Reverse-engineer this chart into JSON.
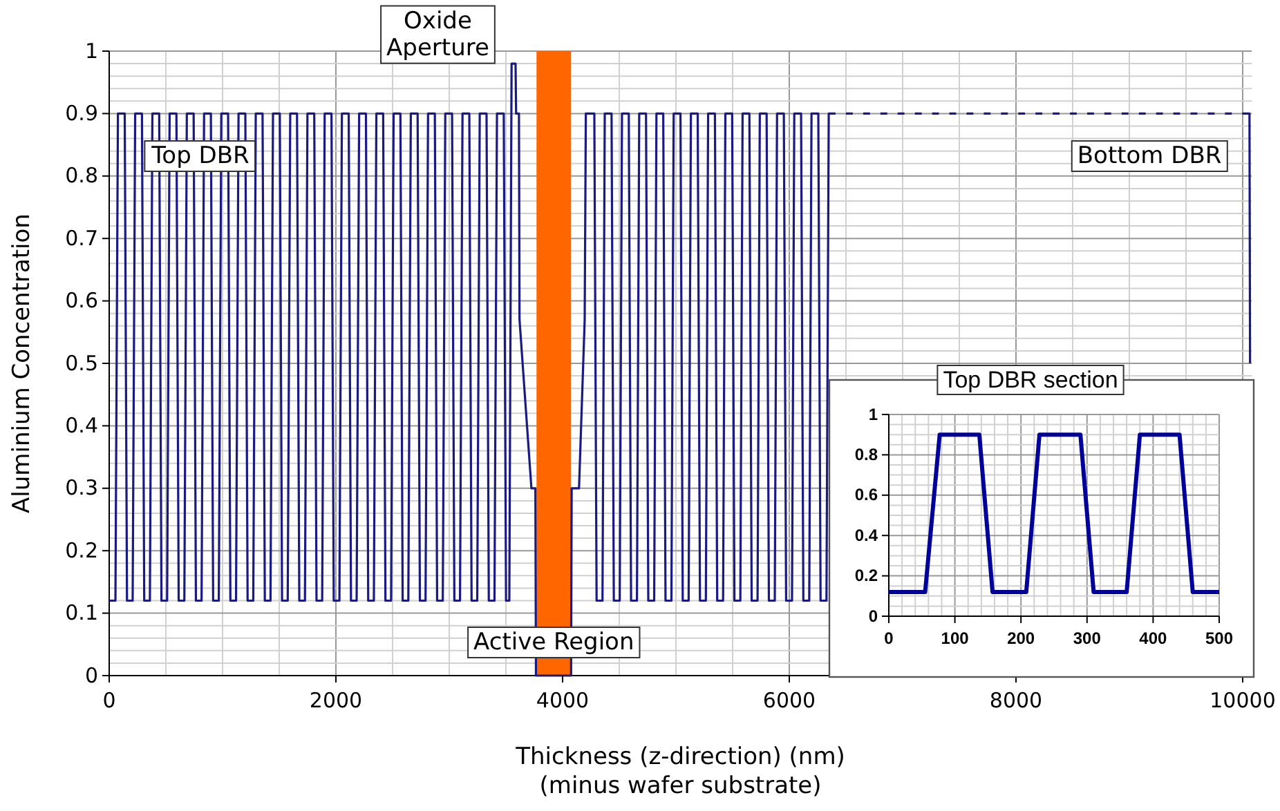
{
  "chart_data": [
    {
      "type": "line",
      "xlabel": "Thickness (z-direction) (nm)\n(minus wafer substrate)",
      "ylabel": "Aluminium Concentration",
      "xlim": [
        0,
        10080
      ],
      "xticks": [
        0,
        2000,
        4000,
        6000,
        8000,
        10000
      ],
      "ylim": [
        0,
        1
      ],
      "yticks": [
        0,
        0.1,
        0.2,
        0.3,
        0.4,
        0.5,
        0.6,
        0.7,
        0.8,
        0.9,
        1
      ],
      "grid": true,
      "marker": "none",
      "line_style": "solid",
      "series": [
        {
          "color": "#1a1a80",
          "x": [
            0,
            55,
            77,
            137,
            157,
            207,
            229,
            289,
            309,
            359,
            381,
            441,
            461,
            511,
            533,
            593,
            613,
            663,
            685,
            745,
            765,
            815,
            837,
            897,
            917,
            967,
            989,
            1049,
            1069,
            1119,
            1141,
            1201,
            1221,
            1271,
            1293,
            1353,
            1373,
            1423,
            1445,
            1505,
            1525,
            1575,
            1597,
            1657,
            1677,
            1727,
            1749,
            1809,
            1829,
            1879,
            1901,
            1961,
            1981,
            2031,
            2053,
            2113,
            2133,
            2183,
            2205,
            2265,
            2285,
            2335,
            2357,
            2417,
            2437,
            2487,
            2509,
            2569,
            2589,
            2639,
            2661,
            2721,
            2741,
            2791,
            2813,
            2873,
            2893,
            2943,
            2965,
            3025,
            3045,
            3095,
            3117,
            3177,
            3197,
            3247,
            3269,
            3329,
            3349,
            3399,
            3421,
            3481,
            3501,
            3530,
            3550,
            3585,
            3590,
            3615,
            3620,
            3725,
            3760,
            3765,
            4075,
            4080,
            4145,
            4195,
            4205,
            4280,
            4300,
            4352,
            4372,
            4432,
            4452,
            4504,
            4524,
            4584,
            4604,
            4656,
            4676,
            4736,
            4756,
            4808,
            4828,
            4888,
            4908,
            4960,
            4980,
            5040,
            5060,
            5112,
            5132,
            5192,
            5212,
            5264,
            5284,
            5344,
            5364,
            5416,
            5436,
            5496,
            5516,
            5568,
            5588,
            5648,
            5668,
            5720,
            5740,
            5800,
            5820,
            5872,
            5892,
            5952,
            5972,
            6024,
            6044,
            6104,
            6124,
            6176,
            6196,
            6256,
            6276,
            6328,
            6348,
            6408,
            6428,
            6480,
            6500,
            6560,
            6580,
            6632,
            6652,
            6712,
            6732,
            6784,
            6804,
            6864,
            6884,
            6936,
            6956,
            7016,
            7036,
            7088,
            7108,
            7168,
            7188,
            7240,
            7260,
            7320,
            7340,
            7392,
            7412,
            7472,
            7492,
            7544,
            7564,
            7624,
            7644,
            7696,
            7716,
            7776,
            7796,
            7848,
            7868,
            7928,
            7948,
            8000,
            8020,
            8080,
            8100,
            8152,
            8172,
            8232,
            8252,
            8304,
            8324,
            8384,
            8404,
            8456,
            8476,
            8536,
            8556,
            8608,
            8628,
            8688,
            8708,
            8760,
            8780,
            8840,
            8860,
            8912,
            8932,
            8992,
            9012,
            9064,
            9084,
            9144,
            9164,
            9216,
            9236,
            9296,
            9316,
            9368,
            9388,
            9448,
            9468,
            9520,
            9540,
            9600,
            9620,
            9672,
            9692,
            9752,
            9772,
            9824,
            9844,
            9904,
            9924,
            9976,
            9996,
            10060,
            10065
          ],
          "values": [
            0.12,
            0.12,
            0.9,
            0.9,
            0.12,
            0.12,
            0.9,
            0.9,
            0.12,
            0.12,
            0.9,
            0.9,
            0.12,
            0.12,
            0.9,
            0.9,
            0.12,
            0.12,
            0.9,
            0.9,
            0.12,
            0.12,
            0.9,
            0.9,
            0.12,
            0.12,
            0.9,
            0.9,
            0.12,
            0.12,
            0.9,
            0.9,
            0.12,
            0.12,
            0.9,
            0.9,
            0.12,
            0.12,
            0.9,
            0.9,
            0.12,
            0.12,
            0.9,
            0.9,
            0.12,
            0.12,
            0.9,
            0.9,
            0.12,
            0.12,
            0.9,
            0.9,
            0.12,
            0.12,
            0.9,
            0.9,
            0.12,
            0.12,
            0.9,
            0.9,
            0.12,
            0.12,
            0.9,
            0.9,
            0.12,
            0.12,
            0.9,
            0.9,
            0.12,
            0.12,
            0.9,
            0.9,
            0.12,
            0.12,
            0.9,
            0.9,
            0.12,
            0.12,
            0.9,
            0.9,
            0.12,
            0.12,
            0.9,
            0.9,
            0.12,
            0.12,
            0.9,
            0.9,
            0.12,
            0.12,
            0.9,
            0.9,
            0.12,
            0.12,
            0.98,
            0.98,
            0.9,
            0.9,
            0.57,
            0.3,
            0.3,
            0,
            0,
            0.3,
            0.3,
            0.57,
            0.9,
            0.9,
            0.12,
            0.12,
            0.9,
            0.9,
            0.12,
            0.12,
            0.9,
            0.9,
            0.12,
            0.12,
            0.9,
            0.9,
            0.12,
            0.12,
            0.9,
            0.9,
            0.12,
            0.12,
            0.9,
            0.9,
            0.12,
            0.12,
            0.9,
            0.9,
            0.12,
            0.12,
            0.9,
            0.9,
            0.12,
            0.12,
            0.9,
            0.9,
            0.12,
            0.12,
            0.9,
            0.9,
            0.12,
            0.12,
            0.9,
            0.9,
            0.12,
            0.12,
            0.9,
            0.9,
            0.12,
            0.12,
            0.9,
            0.9,
            0.12,
            0.12,
            0.9,
            0.9,
            0.12,
            0.12,
            0.9,
            0.9,
            null,
            null,
            0.9,
            0.9,
            null,
            null,
            0.9,
            0.9,
            null,
            null,
            0.9,
            0.9,
            null,
            null,
            0.9,
            0.9,
            null,
            null,
            0.9,
            0.9,
            null,
            null,
            0.9,
            0.9,
            null,
            null,
            0.9,
            0.9,
            null,
            null,
            0.9,
            0.9,
            null,
            null,
            0.9,
            0.9,
            null,
            null,
            0.9,
            0.9,
            null,
            null,
            0.9,
            0.9,
            null,
            null,
            0.9,
            0.9,
            null,
            null,
            0.9,
            0.9,
            null,
            null,
            0.9,
            0.9,
            null,
            null,
            0.9,
            0.9,
            null,
            null,
            0.9,
            0.9,
            null,
            null,
            0.9,
            0.9,
            null,
            null,
            0.9,
            0.9,
            null,
            null,
            0.9,
            0.9,
            null,
            null,
            0.9,
            0.9,
            null,
            null,
            0.9,
            0.9,
            null,
            null,
            0.9,
            0.9,
            null,
            null,
            0.9,
            0.9,
            null,
            null,
            0.9,
            0.9,
            0.5
          ]
        }
      ],
      "bands": [
        {
          "axis": "x",
          "from": 3770,
          "to": 4075,
          "label": "Active Region",
          "color": "#ff6600"
        }
      ],
      "annotations": [
        "Top DBR",
        "Bottom DBR",
        {
          "text": "Oxide\nAperture",
          "x": 3570,
          "y": 0.98
        }
      ]
    },
    {
      "type": "line",
      "title": "Top DBR section",
      "xlim": [
        0,
        500
      ],
      "xticks": [
        0,
        100,
        200,
        300,
        400,
        500
      ],
      "ylim": [
        0,
        1
      ],
      "yticks": [
        0,
        0.2,
        0.4,
        0.6,
        0.8,
        1
      ],
      "grid": true,
      "marker": "none",
      "line_style": "solid",
      "series": [
        {
          "color": "#000099",
          "x": [
            0,
            55,
            77,
            137,
            157,
            208,
            228,
            290,
            310,
            360,
            380,
            440,
            460,
            500
          ],
          "values": [
            0.12,
            0.12,
            0.9,
            0.9,
            0.12,
            0.12,
            0.9,
            0.9,
            0.12,
            0.12,
            0.9,
            0.9,
            0.12,
            0.12
          ]
        }
      ]
    }
  ]
}
